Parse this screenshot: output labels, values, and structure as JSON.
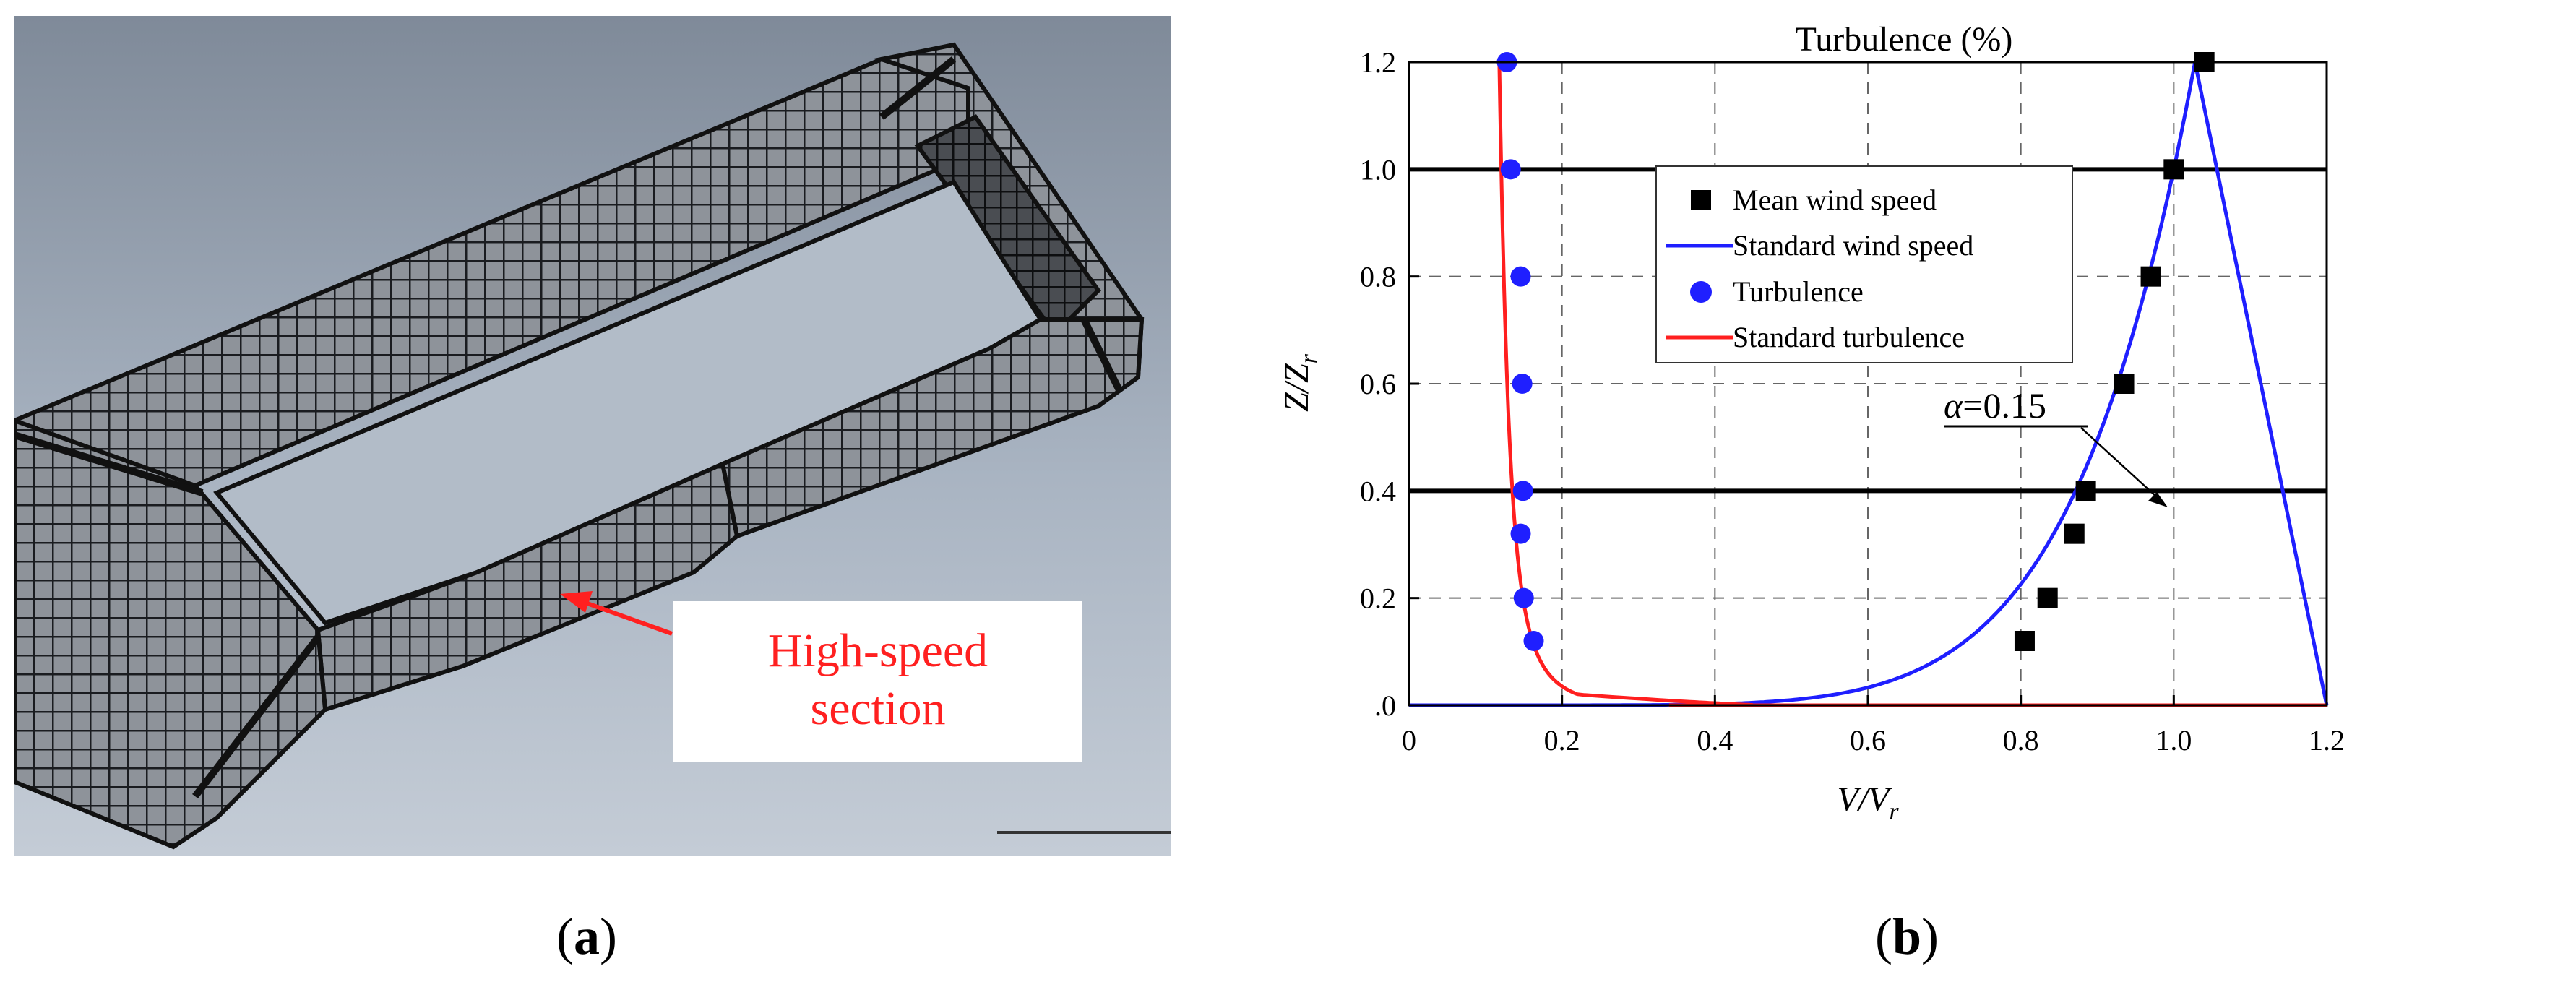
{
  "panel_a": {
    "annotation": "High-speed section",
    "annotation_line1": "High-speed",
    "annotation_line2": "section",
    "caption_open": "(",
    "caption_letter": "a",
    "caption_close": ")"
  },
  "panel_b": {
    "caption_open": "(",
    "caption_letter": "b",
    "caption_close": ")",
    "alpha_symbol": "α",
    "alpha_value": "=0.15"
  },
  "colors": {
    "mean_marker": "#000000",
    "standard_wind": "#1f1fff",
    "turbulence_marker": "#1f1fff",
    "standard_turbulence": "#ff1f1f",
    "annotation_text": "#ff2020"
  },
  "chart_data": {
    "type": "scatter",
    "title": "Turbulence (%)",
    "xlabel": "V/V",
    "xlabel_sub": "r",
    "ylabel": "Z/Z",
    "ylabel_sub": "r",
    "xlim": [
      0,
      1.2
    ],
    "ylim": [
      0,
      1.2
    ],
    "x_ticks": [
      "0",
      "0.2",
      "0.4",
      "0.6",
      "0.8",
      "1.0",
      "1.2"
    ],
    "y_ticks": [
      ".0",
      "0.2",
      "0.4",
      "0.6",
      "0.8",
      "1.0",
      "1.2"
    ],
    "grid": true,
    "legend_position": "top-center",
    "reference_lines_y": [
      0.4,
      1.0
    ],
    "series": [
      {
        "name": "Mean wind speed",
        "kind": "scatter",
        "marker": "square",
        "points": [
          [
            0.805,
            0.12
          ],
          [
            0.835,
            0.2
          ],
          [
            0.87,
            0.32
          ],
          [
            0.885,
            0.4
          ],
          [
            0.935,
            0.6
          ],
          [
            0.97,
            0.8
          ],
          [
            1.0,
            1.0
          ],
          [
            1.04,
            1.2
          ]
        ]
      },
      {
        "name": "Standard wind speed",
        "kind": "line",
        "exponent": 0.15,
        "reference": [
          1.0,
          1.0
        ]
      },
      {
        "name": "Turbulence",
        "kind": "scatter",
        "marker": "circle",
        "points": [
          [
            0.163,
            0.12
          ],
          [
            0.15,
            0.2
          ],
          [
            0.146,
            0.32
          ],
          [
            0.149,
            0.4
          ],
          [
            0.148,
            0.6
          ],
          [
            0.146,
            0.8
          ],
          [
            0.133,
            1.0
          ],
          [
            0.128,
            1.2
          ]
        ]
      },
      {
        "name": "Standard turbulence",
        "kind": "line"
      }
    ]
  }
}
